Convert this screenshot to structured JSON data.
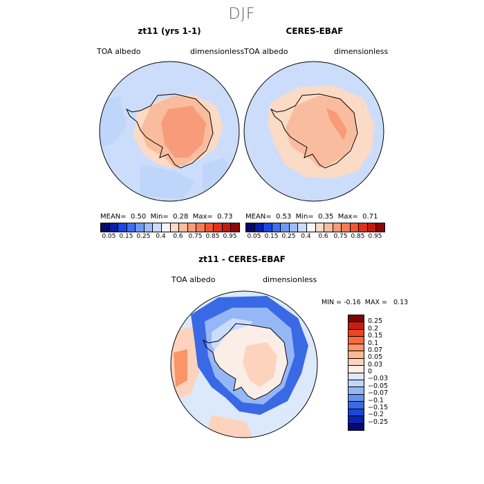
{
  "season": "DJF",
  "panels": [
    {
      "title": "zt11 (yrs 1-1)",
      "left_label": "TOA albedo",
      "right_label": "dimensionless",
      "mean": "0.50",
      "min": "0.28",
      "max": "0.73",
      "mean_label": "MEAN=",
      "min_label": "Min=",
      "max_label": "Max="
    },
    {
      "title": "CERES-EBAF",
      "left_label": "TOA albedo",
      "right_label": "dimensionless",
      "mean": "0.53",
      "min": "0.35",
      "max": "0.71",
      "mean_label": "MEAN=",
      "min_label": "Min=",
      "max_label": "Max="
    }
  ],
  "abs_colorbar": {
    "colors": [
      "#08086b",
      "#0a1fa8",
      "#1e46e0",
      "#3f6ff0",
      "#6f98f5",
      "#9dbdf8",
      "#cbddfb",
      "#f5f6fa",
      "#fbdac6",
      "#f9bc9e",
      "#f79b78",
      "#f57b55",
      "#ef5631",
      "#e0321a",
      "#c41a0f",
      "#8c0707"
    ],
    "ticks": [
      "0.05",
      "0.15",
      "0.25",
      "0.4",
      "0.6",
      "0.75",
      "0.85",
      "0.95"
    ]
  },
  "diff": {
    "title": "zt11 - CERES-EBAF",
    "left_label": "TOA albedo",
    "right_label": "dimensionless",
    "min_label": "MIN =",
    "min": "-0.16",
    "max_label": "MAX =",
    "max": "0.13"
  },
  "diff_colorbar": {
    "colors": [
      "#7c0506",
      "#c81e10",
      "#ee4420",
      "#f96a3e",
      "#fb9467",
      "#fdb793",
      "#fdd3bd",
      "#fbeee6",
      "#dce9fb",
      "#bfd5fa",
      "#95b7f6",
      "#6692f0",
      "#3a69e6",
      "#1d46d7",
      "#0b25ac",
      "#060a72"
    ],
    "labels": [
      "0.25",
      "0.2",
      "0.15",
      "0.1",
      "0.07",
      "0.05",
      "0.03",
      "0",
      "−0.03",
      "−0.05",
      "−0.07",
      "−0.1",
      "−0.15",
      "−0.2",
      "−0.25"
    ]
  },
  "map_colors": {
    "ocean": "#cbddfb",
    "land_light": "#fbdac6",
    "land_mid": "#f9bc9e",
    "land_dark": "#f79b78",
    "diff_pos1": "#fdd3bd",
    "diff_pos2": "#fbeee6",
    "diff_neg_blue": "#3a69e6",
    "diff_neg_mid": "#6692f0",
    "diff_neg_light": "#95b7f6",
    "diff_neg_pale": "#bfd5fa",
    "diff_pos_strong": "#fb9467"
  }
}
